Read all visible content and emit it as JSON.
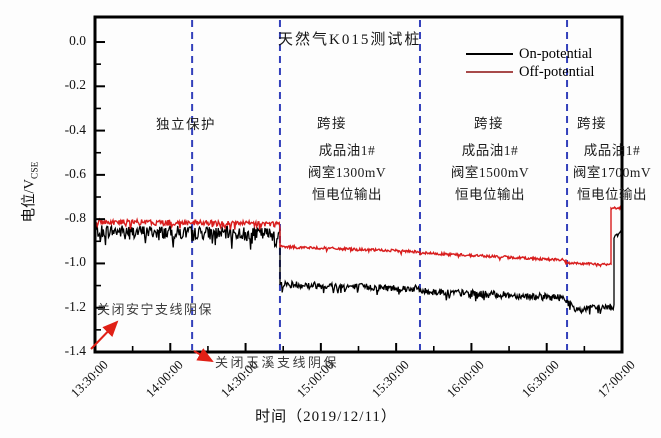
{
  "chart_data": {
    "type": "line",
    "title": "天然气K015测试桩",
    "xlabel": "时间（2019/12/11）",
    "ylabel_main": "电位/V",
    "ylabel_sub": "CSE",
    "x_tick_labels": [
      "13:30:00",
      "14:00:00",
      "14:30:00",
      "15:00:00",
      "15:30:00",
      "16:00:00",
      "16:30:00",
      "17:00:00"
    ],
    "x_tick_minutes": [
      0,
      30,
      60,
      90,
      120,
      150,
      180,
      210
    ],
    "x_minor_minutes": [
      15,
      45,
      75,
      105,
      135,
      165,
      195
    ],
    "x_minutes_range": [
      0,
      210
    ],
    "y_tick_labels": [
      "0.0",
      "-0.2",
      "-0.4",
      "-0.6",
      "-0.8",
      "-1.0",
      "-1.2",
      "-1.4"
    ],
    "y_tick_values": [
      0,
      -0.2,
      -0.4,
      -0.6,
      -0.8,
      -1.0,
      -1.2,
      -1.4
    ],
    "y_minor_values": [
      -0.1,
      -0.3,
      -0.5,
      -0.7,
      -0.9,
      -1.1,
      -1.3
    ],
    "ylim": [
      -1.4,
      0.113
    ],
    "grid": false,
    "legend": {
      "position": "upper-right",
      "entries": [
        {
          "label": "On-potential",
          "color": "#000000"
        },
        {
          "label": "Off-potential",
          "color": "#a84a4a"
        }
      ]
    },
    "colors": {
      "on_line": "#000000",
      "off_line": "#d81d1d",
      "event_line": "#3340bb",
      "arrow": "#e02016",
      "frame": "#000000"
    },
    "event_lines_minutes": [
      38.7,
      73.7,
      129.5,
      188.1
    ],
    "series": [
      {
        "name": "On-potential",
        "color": "#000000",
        "segments": [
          [
            0,
            73.7,
            -0.853,
            -0.868,
            0.03
          ],
          [
            73.7,
            129.5,
            -1.093,
            -1.115,
            0.016
          ],
          [
            129.5,
            187.7,
            -1.125,
            -1.155,
            0.016
          ],
          [
            187.7,
            192,
            -1.17,
            -1.215,
            0.018
          ],
          [
            192,
            206.8,
            -1.205,
            -1.195,
            0.014
          ],
          [
            206.8,
            210,
            -0.88,
            -0.85,
            0.012
          ]
        ]
      },
      {
        "name": "Off-potential",
        "color": "#d81d1d",
        "segments": [
          [
            0,
            73.7,
            -0.812,
            -0.822,
            0.013
          ],
          [
            73.7,
            129.5,
            -0.924,
            -0.947,
            0.006
          ],
          [
            129.5,
            187.7,
            -0.952,
            -0.985,
            0.006
          ],
          [
            187.7,
            205.6,
            -0.998,
            -1.005,
            0.005
          ],
          [
            205.6,
            210,
            -0.752,
            -0.748,
            0.006
          ]
        ]
      }
    ],
    "region_labels": [
      {
        "text": "独立保护",
        "x": 186,
        "y": 113
      },
      {
        "text": "跨接",
        "x": 332,
        "y": 112
      },
      {
        "text": "跨接",
        "x": 489,
        "y": 112
      },
      {
        "text": "跨接",
        "x": 592,
        "y": 112
      }
    ],
    "text_blocks": [
      {
        "lines": [
          "成品油1#",
          "阀室1300mV",
          "恒电位输出"
        ],
        "cx": 347,
        "top": 140
      },
      {
        "lines": [
          "成品油1#",
          "阀室1500mV",
          "恒电位输出"
        ],
        "cx": 490,
        "top": 140
      },
      {
        "lines": [
          "成品油1#",
          "阀室1700mV",
          "恒电位输出"
        ],
        "cx": 612,
        "top": 140
      }
    ],
    "arrow_annotations": [
      {
        "text": "关闭安宁支线阴保",
        "text_x": 97,
        "text_y": 299,
        "spacing": 1.5,
        "arrow": [
          91,
          349,
          117,
          322
        ]
      },
      {
        "text": "关闭玉溪支线阴保",
        "text_x": 215,
        "text_y": 352,
        "spacing": 2.5,
        "arrow": [
          194,
          351,
          212,
          361
        ]
      }
    ]
  }
}
